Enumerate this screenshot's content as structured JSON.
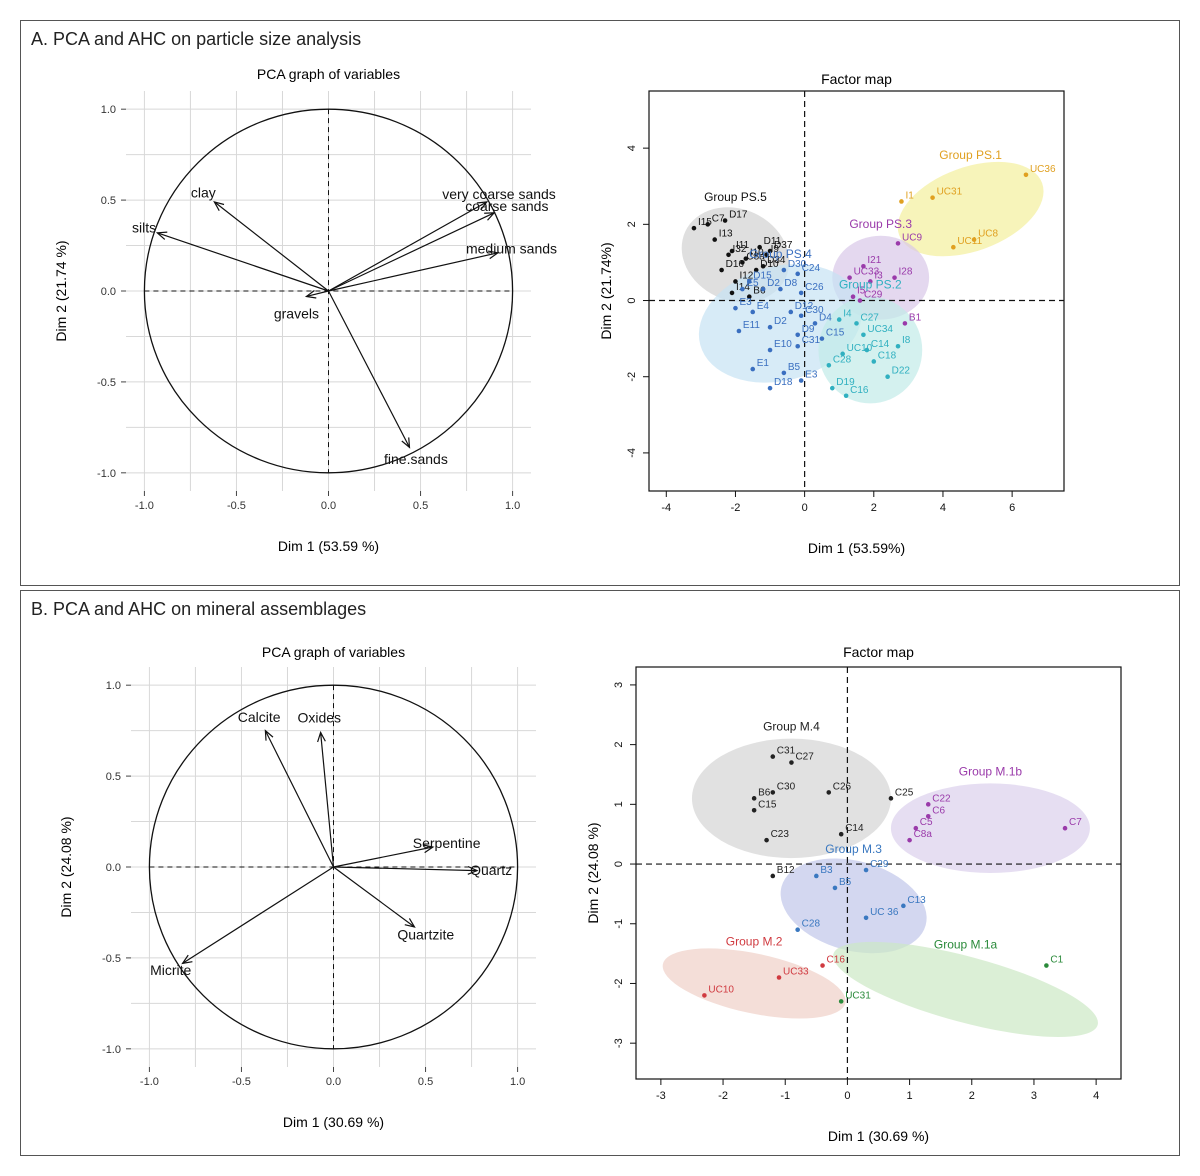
{
  "chart_data": [
    {
      "panel_title": "A. PCA and AHC on particle size analysis",
      "type": "scatter",
      "charts": [
        {
          "kind": "variables",
          "title": "PCA graph of variables",
          "xlabel": "Dim 1 (53.59 %)",
          "ylabel": "Dim 2 (21.74 %)",
          "xlim": [
            -1.1,
            1.1
          ],
          "ylim": [
            -1.1,
            1.1
          ],
          "grid": true,
          "xticks": [
            "-1.0",
            "-0.5",
            "0.0",
            "0.5",
            "1.0"
          ],
          "yticks": [
            "-1.0",
            "-0.5",
            "0.0",
            "0.5",
            "1.0"
          ],
          "vectors": [
            {
              "name": "clay",
              "x": -0.62,
              "y": 0.49
            },
            {
              "name": "silts",
              "x": -0.93,
              "y": 0.32
            },
            {
              "name": "very coarse sands",
              "x": 0.86,
              "y": 0.49
            },
            {
              "name": "coarse sands",
              "x": 0.9,
              "y": 0.43
            },
            {
              "name": "medium sands",
              "x": 0.92,
              "y": 0.21
            },
            {
              "name": "gravels",
              "x": -0.12,
              "y": -0.03
            },
            {
              "name": "fine.sands",
              "x": 0.44,
              "y": -0.86
            }
          ]
        },
        {
          "kind": "factor",
          "title": "Factor map",
          "xlabel": "Dim 1 (53.59%)",
          "ylabel": "Dim 2 (21.74%)",
          "xlim": [
            -4.5,
            7.5
          ],
          "ylim": [
            -5.0,
            5.5
          ],
          "grid": false,
          "xticks": [
            "-4",
            "-2",
            "0",
            "2",
            "4",
            "6"
          ],
          "yticks": [
            "-4",
            "-2",
            "0",
            "2",
            "4"
          ],
          "groups": [
            {
              "name": "Group PS.1",
              "color": "#e0a020",
              "fill": "#f4ef9c",
              "ellipse": {
                "cx": 4.8,
                "cy": 2.4,
                "rx": 2.2,
                "ry": 1.1,
                "angle": 20
              },
              "points": [
                {
                  "label": "UC36",
                  "x": 6.4,
                  "y": 3.3
                },
                {
                  "label": "UC31",
                  "x": 3.7,
                  "y": 2.7
                },
                {
                  "label": "I1",
                  "x": 2.8,
                  "y": 2.6
                },
                {
                  "label": "UC11",
                  "x": 4.3,
                  "y": 1.4
                },
                {
                  "label": "UC8",
                  "x": 4.9,
                  "y": 1.6
                }
              ]
            },
            {
              "name": "Group PS.3",
              "color": "#9a3aaa",
              "fill": "#d8c8e8",
              "ellipse": {
                "cx": 2.2,
                "cy": 0.6,
                "rx": 1.4,
                "ry": 1.1,
                "angle": 0
              },
              "points": [
                {
                  "label": "UC9",
                  "x": 2.7,
                  "y": 1.5
                },
                {
                  "label": "I21",
                  "x": 1.7,
                  "y": 0.9
                },
                {
                  "label": "UC33",
                  "x": 1.3,
                  "y": 0.6
                },
                {
                  "label": "I3",
                  "x": 1.9,
                  "y": 0.5
                },
                {
                  "label": "I28",
                  "x": 2.6,
                  "y": 0.6
                },
                {
                  "label": "I5",
                  "x": 1.4,
                  "y": 0.1
                },
                {
                  "label": "C29",
                  "x": 1.6,
                  "y": 0.0
                },
                {
                  "label": "B1",
                  "x": 2.9,
                  "y": -0.6
                }
              ]
            },
            {
              "name": "Group PS.5",
              "color": "#111111",
              "fill": "#d2d2d2",
              "ellipse": {
                "cx": -2.0,
                "cy": 1.2,
                "rx": 1.6,
                "ry": 1.2,
                "angle": -25
              },
              "points": [
                {
                  "label": "C7",
                  "x": -2.8,
                  "y": 2.0
                },
                {
                  "label": "D17",
                  "x": -2.3,
                  "y": 2.1
                },
                {
                  "label": "I15",
                  "x": -3.2,
                  "y": 1.9
                },
                {
                  "label": "I13",
                  "x": -2.6,
                  "y": 1.6
                },
                {
                  "label": "I11",
                  "x": -2.1,
                  "y": 1.3
                },
                {
                  "label": "D11",
                  "x": -1.3,
                  "y": 1.4
                },
                {
                  "label": "D37",
                  "x": -1.0,
                  "y": 1.3
                },
                {
                  "label": "I32",
                  "x": -2.2,
                  "y": 1.2
                },
                {
                  "label": "I10",
                  "x": -1.7,
                  "y": 1.1
                },
                {
                  "label": "I9",
                  "x": -1.1,
                  "y": 1.2
                },
                {
                  "label": "C8a",
                  "x": -1.8,
                  "y": 1.0
                },
                {
                  "label": "D34",
                  "x": -1.2,
                  "y": 0.9
                },
                {
                  "label": "D10",
                  "x": -1.4,
                  "y": 0.8
                },
                {
                  "label": "D16",
                  "x": -2.4,
                  "y": 0.8
                },
                {
                  "label": "I12",
                  "x": -2.0,
                  "y": 0.5
                },
                {
                  "label": "I14",
                  "x": -2.1,
                  "y": 0.2
                },
                {
                  "label": "B6",
                  "x": -1.6,
                  "y": 0.1
                }
              ]
            },
            {
              "name": "Group PS.4",
              "color": "#3a6fc0",
              "fill": "#c6e3f4",
              "ellipse": {
                "cx": -0.7,
                "cy": -0.6,
                "rx": 2.4,
                "ry": 1.5,
                "angle": 15
              },
              "points": [
                {
                  "label": "D30",
                  "x": -0.6,
                  "y": 0.8
                },
                {
                  "label": "D15",
                  "x": -1.6,
                  "y": 0.5
                },
                {
                  "label": "C24",
                  "x": -0.2,
                  "y": 0.7
                },
                {
                  "label": "E5",
                  "x": -1.8,
                  "y": 0.3
                },
                {
                  "label": "D2",
                  "x": -1.2,
                  "y": 0.3
                },
                {
                  "label": "D8",
                  "x": -0.7,
                  "y": 0.3
                },
                {
                  "label": "C26",
                  "x": -0.1,
                  "y": 0.2
                },
                {
                  "label": "E3",
                  "x": -2.0,
                  "y": -0.2
                },
                {
                  "label": "E4",
                  "x": -1.5,
                  "y": -0.3
                },
                {
                  "label": "D12",
                  "x": -0.4,
                  "y": -0.3
                },
                {
                  "label": "C30",
                  "x": -0.1,
                  "y": -0.4
                },
                {
                  "label": "E11",
                  "x": -1.9,
                  "y": -0.8
                },
                {
                  "label": "D2",
                  "x": -1.0,
                  "y": -0.7
                },
                {
                  "label": "D4",
                  "x": 0.3,
                  "y": -0.6
                },
                {
                  "label": "D9",
                  "x": -0.2,
                  "y": -0.9
                },
                {
                  "label": "C15",
                  "x": 0.5,
                  "y": -1.0
                },
                {
                  "label": "C31",
                  "x": -0.2,
                  "y": -1.2
                },
                {
                  "label": "E10",
                  "x": -1.0,
                  "y": -1.3
                },
                {
                  "label": "E1",
                  "x": -1.5,
                  "y": -1.8
                },
                {
                  "label": "B5",
                  "x": -0.6,
                  "y": -1.9
                },
                {
                  "label": "E3",
                  "x": -0.1,
                  "y": -2.1
                },
                {
                  "label": "D18",
                  "x": -1.0,
                  "y": -2.3
                }
              ]
            },
            {
              "name": "Group PS.2",
              "color": "#30b0c0",
              "fill": "#c2ebe8",
              "ellipse": {
                "cx": 1.9,
                "cy": -1.3,
                "rx": 1.5,
                "ry": 1.4,
                "angle": 0
              },
              "points": [
                {
                  "label": "I4",
                  "x": 1.0,
                  "y": -0.5
                },
                {
                  "label": "C27",
                  "x": 1.5,
                  "y": -0.6
                },
                {
                  "label": "UC34",
                  "x": 1.7,
                  "y": -0.9
                },
                {
                  "label": "I8",
                  "x": 2.7,
                  "y": -1.2
                },
                {
                  "label": "C14",
                  "x": 1.8,
                  "y": -1.3
                },
                {
                  "label": "UC10",
                  "x": 1.1,
                  "y": -1.4
                },
                {
                  "label": "C18",
                  "x": 2.0,
                  "y": -1.6
                },
                {
                  "label": "C28",
                  "x": 0.7,
                  "y": -1.7
                },
                {
                  "label": "D22",
                  "x": 2.4,
                  "y": -2.0
                },
                {
                  "label": "D19",
                  "x": 0.8,
                  "y": -2.3
                },
                {
                  "label": "C16",
                  "x": 1.2,
                  "y": -2.5
                }
              ]
            }
          ]
        }
      ]
    },
    {
      "panel_title": "B. PCA and AHC on mineral assemblages",
      "type": "scatter",
      "charts": [
        {
          "kind": "variables",
          "title": "PCA graph of variables",
          "xlabel": "Dim 1 (30.69 %)",
          "ylabel": "Dim 2 (24.08 %)",
          "xlim": [
            -1.1,
            1.1
          ],
          "ylim": [
            -1.1,
            1.1
          ],
          "grid": true,
          "xticks": [
            "-1.0",
            "-0.5",
            "0.0",
            "0.5",
            "1.0"
          ],
          "yticks": [
            "-1.0",
            "-0.5",
            "0.0",
            "0.5",
            "1.0"
          ],
          "vectors": [
            {
              "name": "Calcite",
              "x": -0.37,
              "y": 0.75
            },
            {
              "name": "Oxides",
              "x": -0.07,
              "y": 0.74
            },
            {
              "name": "Serpentine",
              "x": 0.54,
              "y": 0.11
            },
            {
              "name": "Quartz",
              "x": 0.78,
              "y": -0.02
            },
            {
              "name": "Quartzite",
              "x": 0.44,
              "y": -0.33
            },
            {
              "name": "Micrite",
              "x": -0.82,
              "y": -0.53
            }
          ]
        },
        {
          "kind": "factor",
          "title": "Factor map",
          "xlabel": "Dim 1 (30.69 %)",
          "ylabel": "Dim 2 (24.08 %)",
          "xlim": [
            -3.4,
            4.4
          ],
          "ylim": [
            -3.6,
            3.3
          ],
          "grid": false,
          "xticks": [
            "-3",
            "-2",
            "-1",
            "0",
            "1",
            "2",
            "3",
            "4"
          ],
          "yticks": [
            "-3",
            "-2",
            "-1",
            "0",
            "1",
            "2",
            "3"
          ],
          "groups": [
            {
              "name": "Group M.4",
              "color": "#222222",
              "fill": "#d4d4d4",
              "ellipse": {
                "cx": -0.9,
                "cy": 1.1,
                "rx": 1.6,
                "ry": 1.0,
                "angle": 0
              },
              "points": [
                {
                  "label": "C31",
                  "x": -1.2,
                  "y": 1.8
                },
                {
                  "label": "C27",
                  "x": -0.9,
                  "y": 1.7
                },
                {
                  "label": "C30",
                  "x": -1.2,
                  "y": 1.2
                },
                {
                  "label": "C26",
                  "x": -0.3,
                  "y": 1.2
                },
                {
                  "label": "B6",
                  "x": -1.5,
                  "y": 1.1
                },
                {
                  "label": "C25",
                  "x": 0.7,
                  "y": 1.1
                },
                {
                  "label": "C15",
                  "x": -1.5,
                  "y": 0.9
                },
                {
                  "label": "C14",
                  "x": -0.1,
                  "y": 0.5
                },
                {
                  "label": "C23",
                  "x": -1.3,
                  "y": 0.4
                },
                {
                  "label": "B12",
                  "x": -1.2,
                  "y": -0.2
                }
              ]
            },
            {
              "name": "Group M.1b",
              "color": "#9a3aaa",
              "fill": "#dcd0ec",
              "ellipse": {
                "cx": 2.3,
                "cy": 0.6,
                "rx": 1.6,
                "ry": 0.75,
                "angle": 0
              },
              "points": [
                {
                  "label": "C22",
                  "x": 1.3,
                  "y": 1.0
                },
                {
                  "label": "C7",
                  "x": 3.5,
                  "y": 0.6
                },
                {
                  "label": "C6",
                  "x": 1.3,
                  "y": 0.8
                },
                {
                  "label": "C5",
                  "x": 1.1,
                  "y": 0.6
                },
                {
                  "label": "C8a",
                  "x": 1.0,
                  "y": 0.4
                }
              ]
            },
            {
              "name": "Group M.3",
              "color": "#3a78c0",
              "fill": "#c0c6ea",
              "ellipse": {
                "cx": 0.1,
                "cy": -0.7,
                "rx": 1.2,
                "ry": 0.75,
                "angle": -15
              },
              "points": [
                {
                  "label": "C29",
                  "x": 0.3,
                  "y": -0.1
                },
                {
                  "label": "B3",
                  "x": -0.5,
                  "y": -0.2
                },
                {
                  "label": "B5",
                  "x": -0.2,
                  "y": -0.4
                },
                {
                  "label": "C13",
                  "x": 0.9,
                  "y": -0.7
                },
                {
                  "label": "UC 36",
                  "x": 0.3,
                  "y": -0.9
                },
                {
                  "label": "C28",
                  "x": -0.8,
                  "y": -1.1
                }
              ]
            },
            {
              "name": "Group M.2",
              "color": "#d03a40",
              "fill": "#f0d0c8",
              "ellipse": {
                "cx": -1.5,
                "cy": -2.0,
                "rx": 1.5,
                "ry": 0.5,
                "angle": -12
              },
              "points": [
                {
                  "label": "C16",
                  "x": -0.4,
                  "y": -1.7
                },
                {
                  "label": "UC33",
                  "x": -1.1,
                  "y": -1.9
                },
                {
                  "label": "UC10",
                  "x": -2.3,
                  "y": -2.2
                }
              ]
            },
            {
              "name": "Group M.1a",
              "color": "#2a8a3a",
              "fill": "#cce8c4",
              "ellipse": {
                "cx": 1.9,
                "cy": -2.1,
                "rx": 2.2,
                "ry": 0.55,
                "angle": -15
              },
              "points": [
                {
                  "label": "C1",
                  "x": 3.2,
                  "y": -1.7
                },
                {
                  "label": "UC31",
                  "x": -0.1,
                  "y": -2.3
                }
              ]
            }
          ]
        }
      ]
    }
  ]
}
